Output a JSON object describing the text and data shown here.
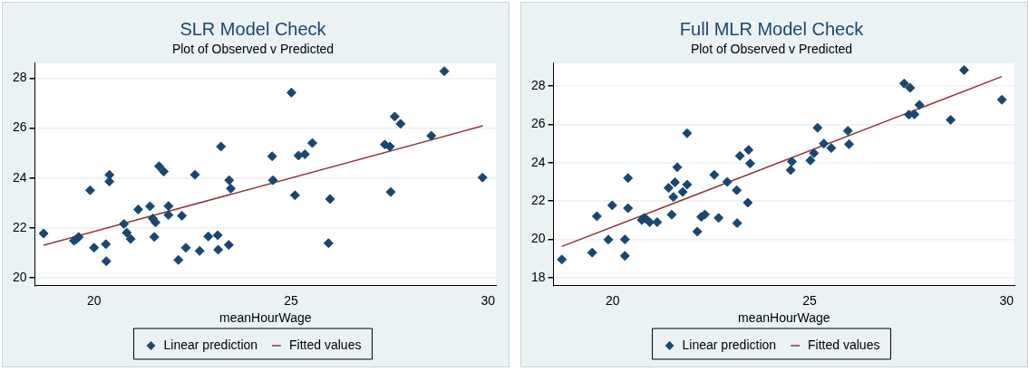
{
  "chart_data": [
    {
      "type": "scatter",
      "title": "SLR Model Check",
      "subtitle": "Plot of Observed v Predicted",
      "xlabel": "meanHourWage",
      "xlim": [
        18.5,
        30.2
      ],
      "xticks": [
        20,
        25,
        30
      ],
      "ylim": [
        19.7,
        28.6
      ],
      "yticks": [
        20,
        22,
        24,
        26,
        28
      ],
      "grid": "y",
      "legend": "bottom",
      "series": [
        {
          "name": "Linear prediction",
          "type": "scatter",
          "marker": "diamond",
          "color": "#1a476f",
          "x": [
            18.72,
            19.49,
            19.55,
            19.61,
            19.9,
            20.0,
            20.3,
            20.31,
            20.39,
            20.39,
            20.76,
            20.83,
            20.93,
            21.12,
            21.42,
            21.49,
            21.56,
            21.53,
            21.65,
            21.77,
            21.89,
            21.89,
            22.14,
            22.23,
            22.33,
            22.56,
            22.68,
            22.9,
            23.14,
            23.15,
            23.22,
            23.42,
            23.43,
            23.47,
            24.52,
            24.54,
            25.01,
            25.1,
            25.19,
            25.35,
            25.54,
            25.95,
            25.99,
            27.38,
            27.51,
            27.53,
            27.63,
            27.78,
            28.56,
            28.89,
            29.86
          ],
          "values": [
            21.78,
            21.49,
            21.55,
            21.64,
            23.51,
            21.21,
            21.35,
            20.67,
            24.13,
            23.86,
            22.16,
            21.81,
            21.56,
            22.74,
            22.87,
            22.38,
            22.22,
            21.64,
            24.47,
            24.26,
            22.88,
            22.52,
            20.72,
            22.49,
            21.21,
            24.13,
            21.08,
            21.66,
            21.71,
            21.13,
            25.26,
            21.32,
            23.91,
            23.58,
            24.87,
            23.91,
            27.42,
            23.31,
            24.9,
            24.95,
            25.4,
            21.39,
            23.16,
            25.34,
            25.26,
            23.44,
            26.46,
            26.17,
            25.69,
            28.28,
            24.02
          ]
        },
        {
          "name": "Fitted values",
          "type": "line",
          "marker": "none",
          "color": "#90353b",
          "x": [
            18.72,
            29.87
          ],
          "values": [
            21.31,
            26.09
          ]
        }
      ]
    },
    {
      "type": "scatter",
      "title": "Full MLR Model Check",
      "subtitle": "Plot of Observed v Predicted",
      "xlabel": "meanHourWage",
      "xlim": [
        18.5,
        30.2
      ],
      "xticks": [
        20,
        25,
        30
      ],
      "ylim": [
        17.6,
        29.2
      ],
      "yticks": [
        18,
        20,
        22,
        24,
        26,
        28
      ],
      "grid": "y",
      "legend": "bottom",
      "series": [
        {
          "name": "Linear prediction",
          "type": "scatter",
          "marker": "diamond",
          "color": "#1a476f",
          "x": [
            18.71,
            19.48,
            19.6,
            19.89,
            19.99,
            20.31,
            20.31,
            20.39,
            20.39,
            20.74,
            20.8,
            20.84,
            20.94,
            21.13,
            21.42,
            21.5,
            21.54,
            21.58,
            21.64,
            21.78,
            21.89,
            21.89,
            22.15,
            22.25,
            22.34,
            22.58,
            22.69,
            22.91,
            23.15,
            23.16,
            23.23,
            23.45,
            23.43,
            23.49,
            24.52,
            24.55,
            25.02,
            25.11,
            25.2,
            25.36,
            25.55,
            25.97,
            26.0,
            27.4,
            27.52,
            27.55,
            27.66,
            27.79,
            28.58,
            28.92,
            29.88
          ],
          "values": [
            18.95,
            19.31,
            21.21,
            19.99,
            21.78,
            20.0,
            19.14,
            23.2,
            21.63,
            21.01,
            21.12,
            21.08,
            20.9,
            20.9,
            22.69,
            21.29,
            22.21,
            22.98,
            23.77,
            22.48,
            25.54,
            22.86,
            20.41,
            21.17,
            21.3,
            23.37,
            21.12,
            23.0,
            22.57,
            20.85,
            24.36,
            24.67,
            21.92,
            23.96,
            23.62,
            24.06,
            24.12,
            24.5,
            25.83,
            25.0,
            24.77,
            25.67,
            24.97,
            28.14,
            26.51,
            27.91,
            26.53,
            27.02,
            26.24,
            28.84,
            27.29
          ]
        },
        {
          "name": "Fitted values",
          "type": "line",
          "marker": "none",
          "color": "#90353b",
          "x": [
            18.71,
            29.88
          ],
          "values": [
            19.63,
            28.5
          ]
        }
      ]
    }
  ]
}
